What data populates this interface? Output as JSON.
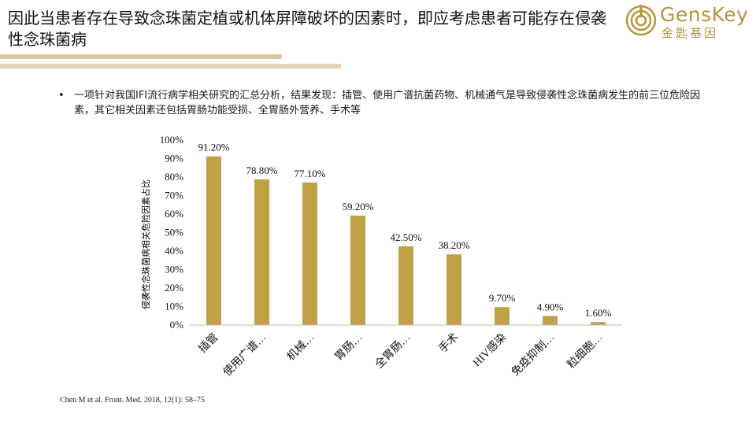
{
  "slide": {
    "title": "因此当患者存在导致念珠菌定植或机体屏障破坏的因素时，即应考虑患者可能存在侵袭性念珠菌病",
    "bullet": "一项针对我国IFI流行病学相关研究的汇总分析，结果发现：插管、使用广谱抗菌药物、机械通气是导致侵袭性念珠菌病发生的前三位危险因素，其它相关因素还包括胃肠功能受损、全胃肠外营养、手术等",
    "bullet_marker": "•",
    "citation": "Chen M et al. Front. Med. 2018, 12(1): 58–75"
  },
  "logo": {
    "name_en": "GensKey",
    "name_cn": "金匙基因",
    "icon": "genskey-logo-icon"
  },
  "colors": {
    "bar": "#bfa046",
    "title_rule": "#d9c9a0",
    "logo": "#b8953b"
  },
  "chart_data": {
    "type": "bar",
    "categories": [
      "插管",
      "使用广谱…",
      "机械…",
      "胃肠…",
      "全胃肠…",
      "手术",
      "HIV感染",
      "免疫抑制…",
      "粒细胞…"
    ],
    "values": [
      91.2,
      78.8,
      77.1,
      59.2,
      42.5,
      38.2,
      9.7,
      4.9,
      1.6
    ],
    "data_labels": [
      "91.20%",
      "78.80%",
      "77.10%",
      "59.20%",
      "42.50%",
      "38.20%",
      "9.70%",
      "4.90%",
      "1.60%"
    ],
    "ylabel": "侵袭性念珠菌病相关危险因素占比",
    "xlabel": "",
    "ylim": [
      0,
      100
    ],
    "yticks": [
      "0%",
      "10%",
      "20%",
      "30%",
      "40%",
      "50%",
      "60%",
      "70%",
      "80%",
      "90%",
      "100%"
    ],
    "grid": false,
    "legend": "none"
  }
}
